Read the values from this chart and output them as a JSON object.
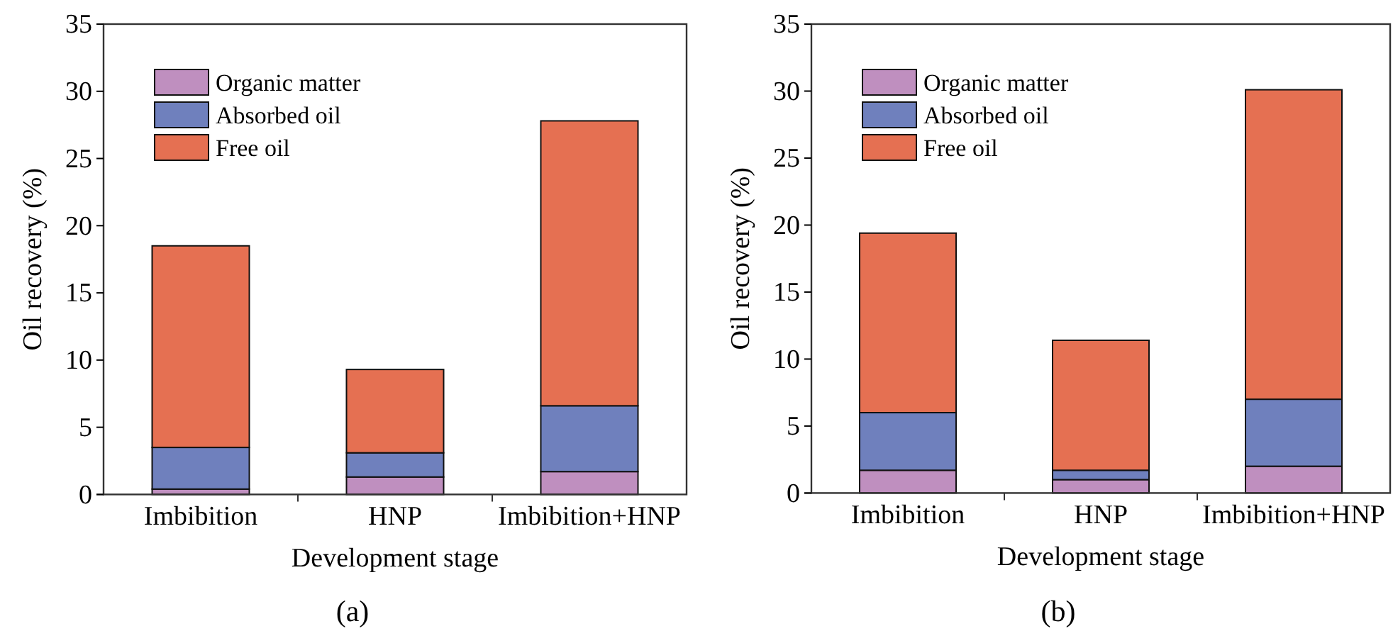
{
  "chart_data": [
    {
      "type": "bar",
      "stacked": true,
      "xlabel": "Development stage",
      "ylabel": "Oil recovery (%)",
      "categories": [
        "Imbibition",
        "HNP",
        "Imbibition+HNP"
      ],
      "ylim": [
        0,
        35
      ],
      "yticks": [
        0,
        5,
        10,
        15,
        20,
        25,
        30,
        35
      ],
      "legend": "top left",
      "annotations": [
        "(a)"
      ],
      "series": [
        {
          "name": "Organic matter",
          "color": "#bf8fbf",
          "values": [
            0.4,
            1.3,
            1.7
          ]
        },
        {
          "name": "Absorbed oil",
          "color": "#6f80bd",
          "values": [
            3.1,
            1.8,
            4.9
          ]
        },
        {
          "name": "Free oil",
          "color": "#e57052",
          "values": [
            15.0,
            6.2,
            21.2
          ]
        }
      ]
    },
    {
      "type": "bar",
      "stacked": true,
      "xlabel": "Development stage",
      "ylabel": "Oil recovery (%)",
      "categories": [
        "Imbibition",
        "HNP",
        "Imbibition+HNP"
      ],
      "ylim": [
        0,
        35
      ],
      "yticks": [
        0,
        5,
        10,
        15,
        20,
        25,
        30,
        35
      ],
      "legend": "top left",
      "annotations": [
        "(b)"
      ],
      "series": [
        {
          "name": "Organic matter",
          "color": "#bf8fbf",
          "values": [
            1.7,
            1.0,
            2.0
          ]
        },
        {
          "name": "Absorbed oil",
          "color": "#6f80bd",
          "values": [
            4.3,
            0.7,
            5.0
          ]
        },
        {
          "name": "Free oil",
          "color": "#e57052",
          "values": [
            13.4,
            9.7,
            23.1
          ]
        }
      ]
    }
  ]
}
